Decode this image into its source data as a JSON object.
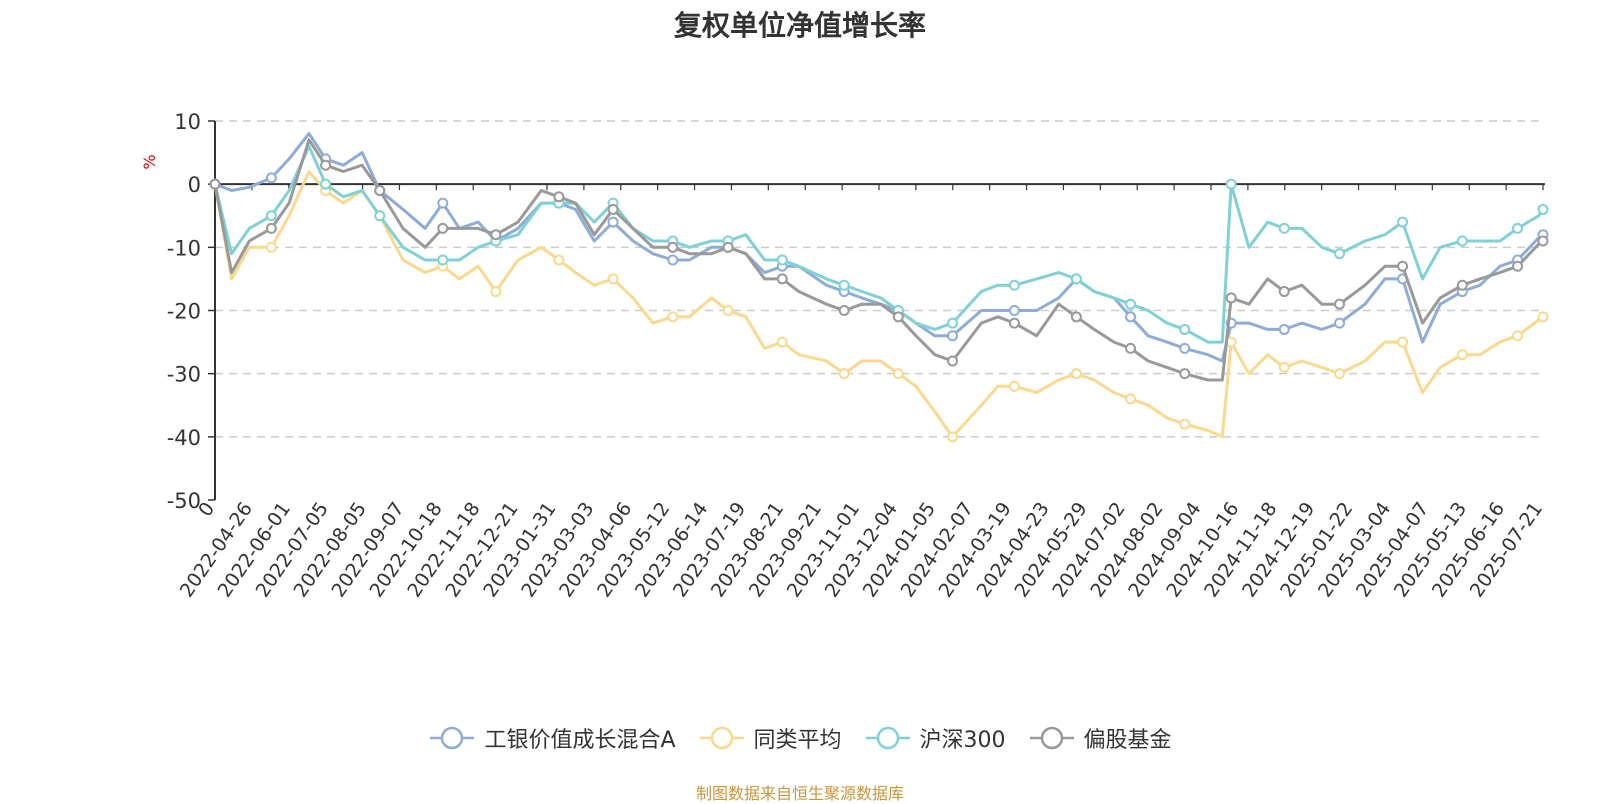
{
  "chart_data": {
    "type": "line",
    "title": "复权单位净值增长率",
    "ylabel": "%",
    "ylim": [
      -50,
      10
    ],
    "yticks": [
      10,
      0,
      -10,
      -20,
      -30,
      -40,
      -50
    ],
    "grid": true,
    "legend_position": "bottom",
    "x_tick_labels": [
      "0",
      "2022-04-26",
      "2022-06-01",
      "2022-07-05",
      "2022-08-05",
      "2022-09-07",
      "2022-10-18",
      "2022-11-18",
      "2022-12-21",
      "2023-01-31",
      "2023-03-03",
      "2023-04-06",
      "2023-05-12",
      "2023-06-14",
      "2023-07-19",
      "2023-08-21",
      "2023-09-21",
      "2023-11-01",
      "2023-12-04",
      "2024-01-05",
      "2024-02-07",
      "2024-03-19",
      "2024-04-23",
      "2024-05-29",
      "2024-07-02",
      "2024-08-02",
      "2024-09-04",
      "2024-10-16",
      "2024-11-18",
      "2024-12-19",
      "2025-01-22",
      "2025-03-04",
      "2025-04-07",
      "2025-05-13",
      "2025-06-16",
      "2025-07-21"
    ],
    "x": [
      "0",
      "2022-04-26",
      "2022-05-12",
      "2022-06-01",
      "2022-06-17",
      "2022-07-05",
      "2022-07-20",
      "2022-08-05",
      "2022-08-22",
      "2022-09-07",
      "2022-09-28",
      "2022-10-18",
      "2022-11-03",
      "2022-11-18",
      "2022-12-05",
      "2022-12-21",
      "2023-01-10",
      "2023-01-31",
      "2023-02-16",
      "2023-03-03",
      "2023-03-20",
      "2023-04-06",
      "2023-04-24",
      "2023-05-12",
      "2023-05-30",
      "2023-06-14",
      "2023-07-04",
      "2023-07-19",
      "2023-08-04",
      "2023-08-21",
      "2023-09-06",
      "2023-09-21",
      "2023-10-16",
      "2023-11-01",
      "2023-11-17",
      "2023-12-04",
      "2023-12-20",
      "2024-01-05",
      "2024-01-22",
      "2024-02-07",
      "2024-03-04",
      "2024-03-19",
      "2024-04-03",
      "2024-04-23",
      "2024-05-13",
      "2024-05-29",
      "2024-06-14",
      "2024-07-02",
      "2024-07-17",
      "2024-08-02",
      "2024-08-19",
      "2024-09-04",
      "2024-09-25",
      "2024-10-08",
      "2024-10-16",
      "2024-11-01",
      "2024-11-18",
      "2024-12-03",
      "2024-12-19",
      "2025-01-06",
      "2025-01-22",
      "2025-02-14",
      "2025-03-04",
      "2025-03-20",
      "2025-04-07",
      "2025-04-23",
      "2025-05-13",
      "2025-05-29",
      "2025-06-16",
      "2025-07-02",
      "2025-07-21",
      "2025-07-25"
    ],
    "series": [
      {
        "name": "工银价值成长混合A",
        "color": "#8eacd9",
        "values": [
          0,
          -1,
          -0.5,
          1,
          4,
          8,
          4,
          3,
          5,
          -1,
          -4,
          -7,
          -3,
          -7,
          -6,
          -9,
          -7,
          -3,
          -3,
          -4,
          -9,
          -6,
          -9,
          -11,
          -12,
          -12,
          -10,
          -10,
          -11,
          -14,
          -13,
          -13,
          -16,
          -17,
          -18,
          -19,
          -20,
          -22,
          -24,
          -24,
          -20,
          -20,
          -20,
          -20,
          -18,
          -15,
          -17,
          -18,
          -21,
          -24,
          -25,
          -26,
          -27,
          -28,
          -22,
          -22,
          -23,
          -23,
          -22,
          -23,
          -22,
          -19,
          -15,
          -15,
          -25,
          -19,
          -17,
          -16,
          -13,
          -12,
          -8.5,
          -8
        ]
      },
      {
        "name": "同类平均",
        "color": "#fad98e",
        "values": [
          0,
          -15,
          -10,
          -10,
          -5,
          2,
          -1,
          -3,
          -1,
          -5,
          -12,
          -14,
          -13,
          -15,
          -13,
          -17,
          -12,
          -10,
          -12,
          -14,
          -16,
          -15,
          -18,
          -22,
          -21,
          -21,
          -18,
          -20,
          -21,
          -26,
          -25,
          -27,
          -28,
          -30,
          -28,
          -28,
          -30,
          -32,
          -36,
          -40,
          -35,
          -32,
          -32,
          -33,
          -31,
          -30,
          -31,
          -33,
          -34,
          -35,
          -37,
          -38,
          -39,
          -40,
          -25,
          -30,
          -27,
          -29,
          -28,
          -29,
          -30,
          -28,
          -25,
          -25,
          -33,
          -29,
          -27,
          -27,
          -25,
          -24,
          -21.5,
          -21
        ]
      },
      {
        "name": "沪深300",
        "color": "#7fd1d6",
        "values": [
          0,
          -11,
          -7,
          -5,
          -1,
          6,
          0,
          -2,
          -1,
          -5,
          -10,
          -12,
          -12,
          -12,
          -10,
          -9,
          -8,
          -3,
          -3,
          -3,
          -6,
          -3,
          -7,
          -9,
          -9,
          -10,
          -9,
          -9,
          -8,
          -12,
          -12,
          -13,
          -15,
          -16,
          -17,
          -18,
          -20,
          -22,
          -23,
          -22,
          -17,
          -16,
          -16,
          -15,
          -14,
          -15,
          -17,
          -18,
          -19,
          -20,
          -22,
          -23,
          -25,
          -25,
          0,
          -10,
          -6,
          -7,
          -7,
          -10,
          -11,
          -9,
          -8,
          -6,
          -15,
          -10,
          -9,
          -9,
          -9,
          -7,
          -5,
          -4
        ]
      },
      {
        "name": "偏股基金",
        "color": "#999999",
        "values": [
          0,
          -14,
          -9,
          -7,
          -3,
          7,
          3,
          2,
          3,
          -1,
          -7,
          -10,
          -7,
          -7,
          -7,
          -8,
          -6,
          -1,
          -2,
          -3,
          -8,
          -4,
          -7,
          -10,
          -10,
          -11,
          -11,
          -10,
          -11,
          -15,
          -15,
          -17,
          -19,
          -20,
          -19,
          -19,
          -21,
          -24,
          -27,
          -28,
          -22,
          -21,
          -22,
          -24,
          -19,
          -21,
          -23,
          -25,
          -26,
          -28,
          -29,
          -30,
          -31,
          -31,
          -18,
          -19,
          -15,
          -17,
          -16,
          -19,
          -19,
          -16,
          -13,
          -13,
          -22,
          -18,
          -16,
          -15,
          -14,
          -13,
          -9.5,
          -9
        ]
      }
    ]
  },
  "source_note": "制图数据来自恒生聚源数据库"
}
